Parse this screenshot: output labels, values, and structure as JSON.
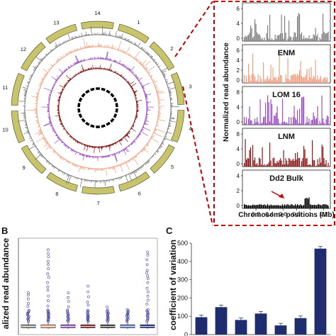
{
  "figure": {
    "panel_labels": {
      "b": "B",
      "c": "C"
    }
  },
  "chart_data": [
    {
      "panel": "A-circos",
      "type": "other",
      "chromosomes": [
        "1",
        "2",
        "3",
        "4",
        "5",
        "6",
        "7",
        "8",
        "9",
        "10",
        "11",
        "12",
        "13",
        "14"
      ],
      "track_colors": [
        "#c8c46e",
        "#6e6e6e",
        "#f0a080",
        "#9b4fc4",
        "#8b1a1a",
        "#000000"
      ]
    },
    {
      "panel": "A-tracks",
      "type": "bar",
      "ylabel": "Normalized read abundance",
      "xlabel": "Chromosome positions (Mb)",
      "x_ticks": [
        "0.2",
        "0.4",
        "0.6",
        "0.8",
        "1",
        "1.2"
      ],
      "xlim": [
        0,
        1.3
      ],
      "series": [
        {
          "name": "",
          "color": "#808080",
          "y_ticks": [
            "0",
            "4",
            "6"
          ]
        },
        {
          "name": "ENM",
          "color": "#f0a080",
          "y_ticks": [
            "0",
            "2",
            "4",
            "6"
          ]
        },
        {
          "name": "LOM 16",
          "color": "#9b4fc4",
          "y_ticks": [
            "0",
            "4",
            "8"
          ]
        },
        {
          "name": "LNM",
          "color": "#8b1a1a",
          "y_ticks": [
            "0",
            "4",
            "8"
          ]
        },
        {
          "name": "Dd2 Bulk",
          "color": "#000000",
          "y_ticks": [
            "0",
            "2",
            "4"
          ]
        }
      ]
    },
    {
      "panel": "B",
      "type": "boxplot",
      "ylabel": "alized read abundance",
      "boxes": [
        {
          "color": "#8a8a8a",
          "max_outlier": 8.0
        },
        {
          "color": "#f0a080",
          "max_outlier": 17.5
        },
        {
          "color": "#9b4fc4",
          "max_outlier": 8.5
        },
        {
          "color": "#8b1a1a",
          "max_outlier": 10.0
        },
        {
          "color": "#3a3a3a",
          "max_outlier": 5.0
        },
        {
          "color": "#5a7ac4",
          "max_outlier": 5.0
        },
        {
          "color": "#1a2a80",
          "max_outlier": 17.5
        }
      ]
    },
    {
      "panel": "C",
      "type": "bar",
      "ylabel": "coefficient of variation",
      "ylim": [
        0,
        500
      ],
      "y_ticks": [
        "0",
        "100",
        "200",
        "300",
        "400",
        "500"
      ],
      "values": [
        95,
        150,
        80,
        115,
        50,
        90,
        470
      ],
      "bar_color": "#1f2d6e"
    }
  ]
}
